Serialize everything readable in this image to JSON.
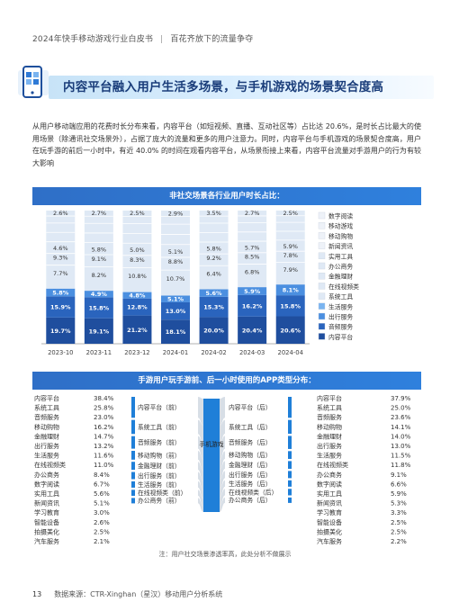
{
  "header": {
    "left": "2024年快手移动游戏行业白皮书",
    "divider": "|",
    "right": "百花齐放下的流量争夺"
  },
  "title": "内容平台融入用户生活多场景，与手机游戏的场景契合度高",
  "paragraph": "从用户移动端应用的花费时长分布来看，内容平台（如短视频、直播、互动社区等）占比达 20.6%，是时长占比最大的使用场景（除通讯社交场景外），占据了庞大的流量和更多的用户注意力。同时，内容平台与手机游戏的场景契合度高，用户在玩手游的前后一小时中，有近 40.0% 的时间在观看内容平台，从场景衔接上来看，内容平台流量对手游用户的行为有较大影响",
  "chart1_title": "非社交场景各行业用户时长占比：",
  "chart2_title": "手游用户玩手游前、后一小时使用的APP类型分布：",
  "colors": {
    "content": "#1f4e9e",
    "audio": "#2a64bd",
    "travel": "#4b8fe0",
    "life": "#7ab4f0",
    "light": "#dfe9f5",
    "lighter": "#eef2f8",
    "white": "#ffffff",
    "bar": "#2f76d2"
  },
  "chart_data": [
    {
      "type": "bar",
      "stacked": true,
      "title": "非社交场景各行业用户时长占比：",
      "categories": [
        "2023-10",
        "2023-11",
        "2023-12",
        "2024-01",
        "2024-02",
        "2024-03",
        "2024-04"
      ],
      "legend_position": "right",
      "legend": [
        "数字阅读",
        "移动游戏",
        "移动购物",
        "新闻资讯",
        "实用工具",
        "办公商务",
        "金融理财",
        "在线视频类",
        "系统工具",
        "生活服务",
        "出行服务",
        "音频服务",
        "内容平台"
      ],
      "bottom_series": [
        {
          "name": "内容平台",
          "values": [
            19.7,
            19.1,
            21.2,
            18.1,
            20.0,
            20.4,
            20.6
          ]
        },
        {
          "name": "音频服务",
          "values": [
            15.9,
            15.8,
            12.8,
            13.0,
            15.3,
            16.2,
            15.8
          ]
        },
        {
          "name": "出行服务",
          "values": [
            5.8,
            4.9,
            4.8,
            5.1,
            5.6,
            5.9,
            8.1
          ]
        }
      ],
      "mid_labels_row1": [
        "7.7%",
        "8.2%",
        "10.8%",
        "10.7%",
        "6.4%",
        "6.8%",
        "7.9%"
      ],
      "mid_labels_row2": [
        "9.3%",
        "9.1%",
        "8.3%",
        "8.8%",
        "9.2%",
        "8.5%",
        "7.8%"
      ],
      "mid_labels_row3": [
        "4.6%",
        "5.8%",
        "5.0%",
        "5.1%",
        "5.8%",
        "5.7%",
        "5.9%"
      ],
      "top_labels": [
        "2.6%",
        "2.7%",
        "2.5%",
        "2.9%",
        "3.5%",
        "2.7%",
        "2.5%"
      ],
      "bottom_labels": [
        "19.7%",
        "19.1%",
        "21.2%",
        "18.1%",
        "20.0%",
        "20.4%",
        "20.6%"
      ],
      "second_labels": [
        "15.9%",
        "15.8%",
        "12.8%",
        "13.0%",
        "15.3%",
        "16.2%",
        "15.8%"
      ],
      "third_labels": [
        "5.8%",
        "4.9%",
        "4.8%",
        "5.1%",
        "5.6%",
        "5.9%",
        "8.1%"
      ]
    },
    {
      "type": "table",
      "title": "手游用户玩手游前、后一小时使用的APP类型分布：",
      "center_label": "手机游戏",
      "before": [
        {
          "name": "内容平台",
          "value": "38.4%"
        },
        {
          "name": "系统工具",
          "value": "25.8%"
        },
        {
          "name": "音频服务",
          "value": "23.0%"
        },
        {
          "name": "移动购物",
          "value": "16.2%"
        },
        {
          "name": "金融理财",
          "value": "14.7%"
        },
        {
          "name": "出行服务",
          "value": "13.2%"
        },
        {
          "name": "生活服务",
          "value": "11.6%"
        },
        {
          "name": "在线视频类",
          "value": "11.0%"
        },
        {
          "name": "办公商务",
          "value": "8.4%"
        },
        {
          "name": "数字阅读",
          "value": "6.7%"
        },
        {
          "name": "实用工具",
          "value": "5.6%"
        },
        {
          "name": "新闻资讯",
          "value": "5.1%"
        },
        {
          "name": "学习教育",
          "value": "3.0%"
        },
        {
          "name": "智能设备",
          "value": "2.6%"
        },
        {
          "name": "拍摄美化",
          "value": "2.5%"
        },
        {
          "name": "汽车服务",
          "value": "2.1%"
        }
      ],
      "after": [
        {
          "name": "内容平台",
          "value": "37.9%"
        },
        {
          "name": "系统工具",
          "value": "25.0%"
        },
        {
          "name": "音频服务",
          "value": "23.6%"
        },
        {
          "name": "移动购物",
          "value": "14.1%"
        },
        {
          "name": "金融理财",
          "value": "14.0%"
        },
        {
          "name": "出行服务",
          "value": "13.0%"
        },
        {
          "name": "生活服务",
          "value": "11.5%"
        },
        {
          "name": "在线视频类",
          "value": "11.8%"
        },
        {
          "name": "办公商务",
          "value": "9.1%"
        },
        {
          "name": "数字阅读",
          "value": "6.6%"
        },
        {
          "name": "实用工具",
          "value": "5.9%"
        },
        {
          "name": "新闻资讯",
          "value": "5.3%"
        },
        {
          "name": "学习教育",
          "value": "3.3%"
        },
        {
          "name": "智能设备",
          "value": "2.5%"
        },
        {
          "name": "拍摄美化",
          "value": "2.5%"
        },
        {
          "name": "汽车服务",
          "value": "2.2%"
        }
      ],
      "flow_before": [
        "内容平台（前）",
        "系统工具（前）",
        "音频服务（前）",
        "移动购物（前）",
        "金融理财（前）",
        "出行服务（前）",
        "生活服务（前）",
        "在线视频类（前）",
        "办公商务（前）"
      ],
      "flow_after": [
        "内容平台（后）",
        "系统工具（后）",
        "音频服务（后）",
        "移动购物（后）",
        "金融理财（后）",
        "出行服务（后）",
        "生活服务（后）",
        "在线视频类（后）",
        "办公商务（后）"
      ],
      "flow_values_before": [
        38.4,
        25.8,
        23.0,
        16.2,
        14.7,
        13.2,
        11.6,
        11.0,
        8.4
      ],
      "flow_values_after": [
        37.9,
        25.0,
        23.6,
        14.1,
        14.0,
        13.0,
        11.5,
        11.8,
        9.1
      ]
    }
  ],
  "note": "注：用户社交场景渗透率高，此处分析不做展示",
  "footer": {
    "page": "13",
    "source": "数据来源：CTR-Xinghan（星汉）移动用户分析系统"
  }
}
